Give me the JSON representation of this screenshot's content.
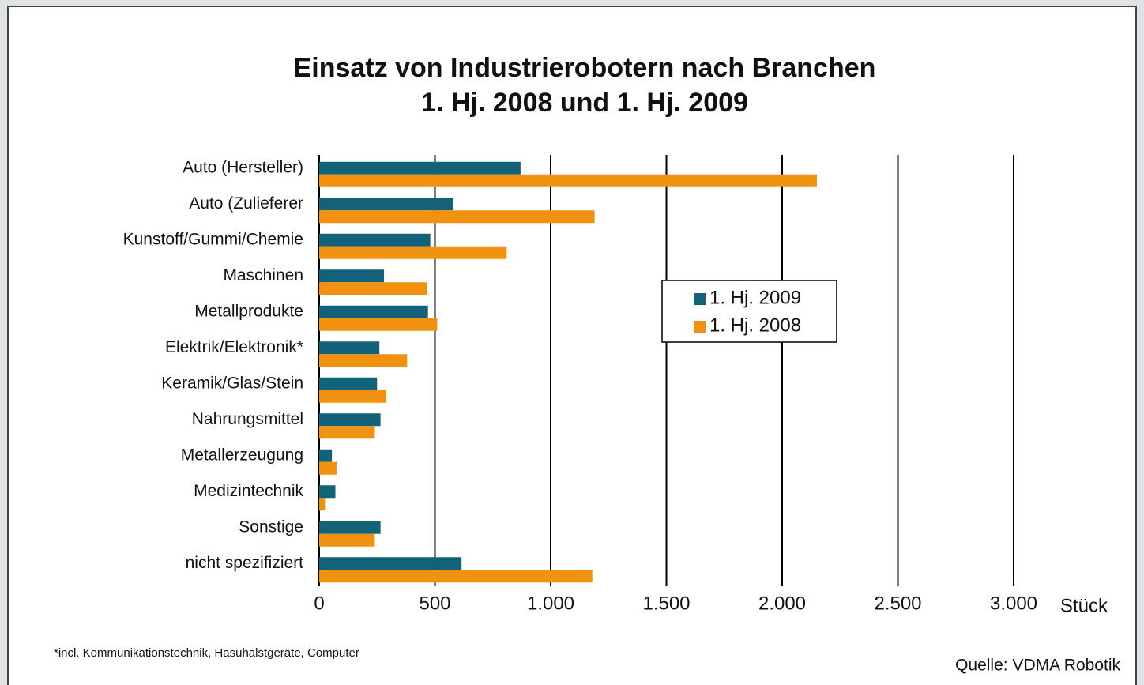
{
  "chart_data": {
    "type": "bar",
    "orientation": "horizontal",
    "title": "Einsatz von Industrierobotern nach Branchen",
    "subtitle": "1. Hj. 2008 und 1. Hj. 2009",
    "x_label": "Stück",
    "footnote": "*incl. Kommunikationstechnik, Hasuhalstgeräte, Computer",
    "source": "Quelle: VDMA Robotik",
    "categories": [
      "Auto (Hersteller)",
      "Auto (Zulieferer",
      "Kunstoff/Gummi/Chemie",
      "Maschinen",
      "Metallprodukte",
      "Elektrik/Elektronik*",
      "Keramik/Glas/Stein",
      "Nahrungsmittel",
      "Metallerzeugung",
      "Medizintechnik",
      "Sonstige",
      "nicht spezifiziert"
    ],
    "series": [
      {
        "name": "1. Hj. 2009",
        "color": "#13627a",
        "values": [
          870,
          580,
          480,
          280,
          470,
          260,
          250,
          265,
          55,
          70,
          265,
          615
        ]
      },
      {
        "name": "1. Hj. 2008",
        "color": "#f0920f",
        "values": [
          2150,
          1190,
          810,
          465,
          510,
          380,
          290,
          240,
          75,
          25,
          240,
          1180
        ]
      }
    ],
    "xlim": [
      0,
      3000
    ],
    "xticks": [
      0,
      500,
      {
        "value": 1000,
        "label": "1.000"
      },
      {
        "value": 1500,
        "label": "1.500"
      },
      {
        "value": 2000,
        "label": "2.000"
      },
      {
        "value": 2500,
        "label": "2.500"
      },
      {
        "value": 3000,
        "label": "3.000"
      }
    ],
    "grid": true,
    "legend": "center"
  }
}
